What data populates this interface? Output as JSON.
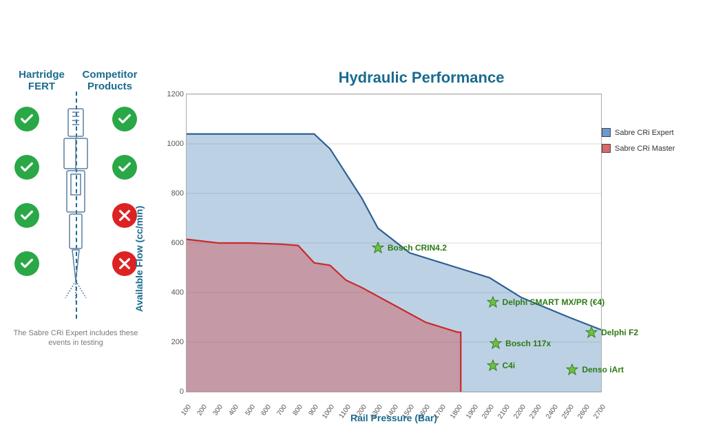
{
  "left_panel": {
    "header_left": "Hartridge\nFERT",
    "header_right": "Competitor\nProducts",
    "caption": "The Sabre CRi Expert includes these events in testing",
    "rows": [
      {
        "left": "ok",
        "right": "ok"
      },
      {
        "left": "ok",
        "right": "ok"
      },
      {
        "left": "ok",
        "right": "no"
      },
      {
        "left": "ok",
        "right": "no"
      }
    ],
    "colors": {
      "ok": "#2aa847",
      "no": "#d22"
    }
  },
  "chart": {
    "title": "Hydraulic Performance",
    "xlabel": "Rail Pressure (Bar)",
    "ylabel": "Available Flow (cc/min)",
    "xlim": [
      100,
      2700
    ],
    "ylim": [
      0,
      1200
    ],
    "xticks": [
      100,
      200,
      300,
      400,
      500,
      600,
      700,
      800,
      900,
      1000,
      1100,
      1200,
      1300,
      1400,
      1500,
      1600,
      1700,
      1800,
      1900,
      2000,
      2100,
      2200,
      2300,
      2400,
      2500,
      2600,
      2700
    ],
    "yticks": [
      0,
      200,
      400,
      600,
      800,
      1000,
      1200
    ],
    "grid_color": "#d8d8d8",
    "background_color": "#ffffff",
    "series": [
      {
        "name": "Sabre CRi Expert",
        "legend_swatch": "#6a9bd1",
        "line_color": "#2b5f93",
        "fill_color": "rgba(90,140,190,0.40)",
        "points": [
          [
            100,
            1040
          ],
          [
            200,
            1040
          ],
          [
            400,
            1040
          ],
          [
            700,
            1040
          ],
          [
            900,
            1040
          ],
          [
            1000,
            980
          ],
          [
            1100,
            880
          ],
          [
            1200,
            780
          ],
          [
            1300,
            660
          ],
          [
            1500,
            560
          ],
          [
            1800,
            500
          ],
          [
            2000,
            460
          ],
          [
            2200,
            380
          ],
          [
            2500,
            300
          ],
          [
            2700,
            250
          ]
        ]
      },
      {
        "name": "Sabre CRi Master",
        "legend_swatch": "#d66",
        "line_color": "#c92a2a",
        "fill_color": "rgba(210,70,70,0.40)",
        "points": [
          [
            100,
            615
          ],
          [
            300,
            600
          ],
          [
            500,
            600
          ],
          [
            700,
            595
          ],
          [
            800,
            590
          ],
          [
            900,
            520
          ],
          [
            1000,
            510
          ],
          [
            1100,
            450
          ],
          [
            1200,
            420
          ],
          [
            1400,
            350
          ],
          [
            1600,
            280
          ],
          [
            1800,
            240
          ],
          [
            1820,
            240
          ],
          [
            1820,
            0
          ]
        ]
      }
    ],
    "markers": [
      {
        "label": "Bosch CRIN4.2",
        "x": 1300,
        "y": 580
      },
      {
        "label": "Delphi SMART MX/PR (€4)",
        "x": 2020,
        "y": 360
      },
      {
        "label": "Bosch 117x",
        "x": 2040,
        "y": 195
      },
      {
        "label": "C4i",
        "x": 2020,
        "y": 105
      },
      {
        "label": "Delphi F2",
        "x": 2640,
        "y": 240
      },
      {
        "label": "Denso iArt",
        "x": 2520,
        "y": 90
      }
    ],
    "marker_color": "#6fbf44",
    "label_fontsize": 12,
    "title_fontsize": 22
  },
  "legend": {
    "items": [
      {
        "label": "Sabre CRi Expert",
        "color": "#6a9bd1"
      },
      {
        "label": "Sabre CRi Master",
        "color": "#d66"
      }
    ]
  }
}
